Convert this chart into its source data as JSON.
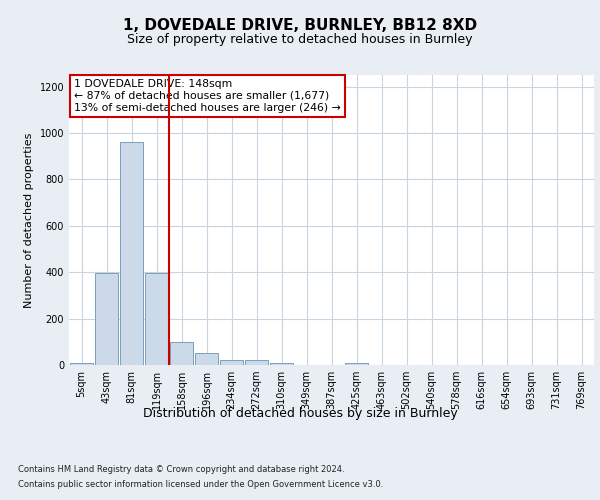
{
  "title1": "1, DOVEDALE DRIVE, BURNLEY, BB12 8XD",
  "title2": "Size of property relative to detached houses in Burnley",
  "xlabel": "Distribution of detached houses by size in Burnley",
  "ylabel": "Number of detached properties",
  "footer1": "Contains HM Land Registry data © Crown copyright and database right 2024.",
  "footer2": "Contains public sector information licensed under the Open Government Licence v3.0.",
  "categories": [
    "5sqm",
    "43sqm",
    "81sqm",
    "119sqm",
    "158sqm",
    "196sqm",
    "234sqm",
    "272sqm",
    "310sqm",
    "349sqm",
    "387sqm",
    "425sqm",
    "463sqm",
    "502sqm",
    "540sqm",
    "578sqm",
    "616sqm",
    "654sqm",
    "693sqm",
    "731sqm",
    "769sqm"
  ],
  "values": [
    10,
    395,
    960,
    395,
    100,
    50,
    20,
    20,
    10,
    0,
    0,
    10,
    0,
    0,
    0,
    0,
    0,
    0,
    0,
    0,
    0
  ],
  "bar_color": "#ccd9e8",
  "bar_edge_color": "#7aa0bf",
  "grid_color": "#c8d4e0",
  "vline_x": 3.5,
  "vline_color": "#cc0000",
  "annotation_text": "1 DOVEDALE DRIVE: 148sqm\n← 87% of detached houses are smaller (1,677)\n13% of semi-detached houses are larger (246) →",
  "annotation_box_color": "#ffffff",
  "annotation_box_edge": "#cc0000",
  "ylim": [
    0,
    1250
  ],
  "yticks": [
    0,
    200,
    400,
    600,
    800,
    1000,
    1200
  ],
  "bg_color": "#e8eef4",
  "plot_bg_color": "#ffffff",
  "title1_fontsize": 11,
  "title2_fontsize": 9,
  "ylabel_fontsize": 8,
  "xlabel_fontsize": 9,
  "tick_fontsize": 7,
  "footer_fontsize": 6
}
